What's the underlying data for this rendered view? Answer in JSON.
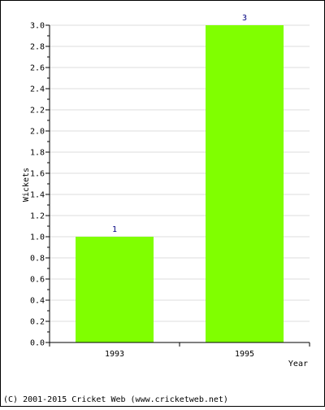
{
  "chart_data": {
    "type": "bar",
    "categories": [
      "1993",
      "1995"
    ],
    "values": [
      1,
      3
    ],
    "data_labels": [
      "1",
      "3"
    ],
    "xlabel": "Year",
    "ylabel": "Wickets",
    "ylim": [
      0,
      3.0
    ],
    "yticks": [
      "0.0",
      "0.2",
      "0.4",
      "0.6",
      "0.8",
      "1.0",
      "1.2",
      "1.4",
      "1.6",
      "1.8",
      "2.0",
      "2.2",
      "2.4",
      "2.6",
      "2.8",
      "3.0"
    ],
    "grid": true,
    "bar_color": "#80ff00",
    "label_color": "#000080",
    "grid_color": "#dddddd"
  },
  "footer": {
    "copyright": "(C) 2001-2015 Cricket Web (www.cricketweb.net)"
  }
}
